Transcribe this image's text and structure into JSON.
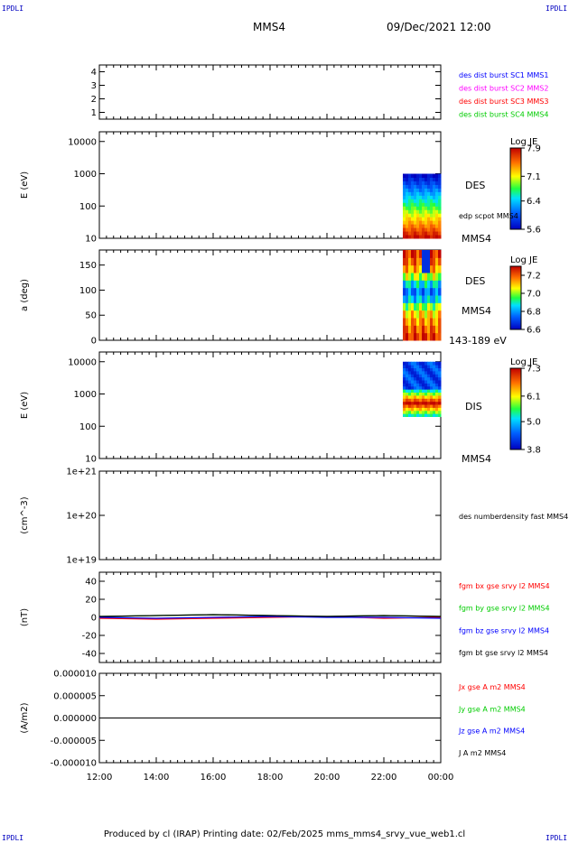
{
  "header": {
    "corner_label": "IPDLI",
    "spacecraft": "MMS4",
    "datetime": "09/Dec/2021 12:00"
  },
  "footer": {
    "text": "Produced by cl (IRAP)   Printing date: 02/Feb/2025   mms_mms4_srvy_vue_web1.cl"
  },
  "colors": {
    "blue": "#0000ff",
    "magenta": "#ff00ff",
    "red": "#ff0000",
    "green": "#00cc00",
    "black": "#000000"
  },
  "chart_data": [
    {
      "type": "line",
      "panel": "burst",
      "ylabel": "",
      "yticks": [
        "4",
        "3",
        "2",
        "1"
      ],
      "ylim": [
        0.5,
        4.5
      ],
      "legend": [
        {
          "text": "des dist burst SC1 MMS1",
          "color": "#0000ff"
        },
        {
          "text": "des dist burst SC2 MMS2",
          "color": "#ff00ff"
        },
        {
          "text": "des dist burst SC3 MMS3",
          "color": "#ff0000"
        },
        {
          "text": "des dist burst SC4 MMS4",
          "color": "#00cc00"
        }
      ],
      "series": []
    },
    {
      "type": "heatmap",
      "panel": "des-energy",
      "ylabel": "E (eV)",
      "yscale": "log",
      "yticks": [
        "10000",
        "1000",
        "100",
        "10"
      ],
      "ylim": [
        10,
        20000
      ],
      "species": "DES",
      "extra_label": "edp scpot MMS4",
      "bottom_label": "MMS4",
      "colorbar": {
        "title": "Log JE",
        "ticks": [
          "7.9",
          "7.1",
          "6.4",
          "5.6"
        ],
        "range": [
          5.6,
          7.9
        ]
      },
      "data_time_range": [
        "22:40",
        "24:00"
      ],
      "energy_range": [
        10,
        1000
      ]
    },
    {
      "type": "heatmap",
      "panel": "des-pitch",
      "ylabel": "a (deg)",
      "yticks": [
        "150",
        "100",
        "50",
        "0"
      ],
      "ylim": [
        0,
        180
      ],
      "species": "DES",
      "spacecraft": "MMS4",
      "energy_band": "143-189 eV",
      "colorbar": {
        "title": "Log JE",
        "ticks": [
          "7.2",
          "7.0",
          "6.8",
          "6.6"
        ],
        "range": [
          6.6,
          7.3
        ]
      },
      "data_time_range": [
        "22:40",
        "24:00"
      ]
    },
    {
      "type": "heatmap",
      "panel": "dis-energy",
      "ylabel": "E (eV)",
      "yscale": "log",
      "yticks": [
        "10000",
        "1000",
        "100",
        "10"
      ],
      "ylim": [
        10,
        20000
      ],
      "species": "DIS",
      "bottom_label": "MMS4",
      "colorbar": {
        "title": "Log JE",
        "ticks": [
          "7.3",
          "6.1",
          "5.0",
          "3.8"
        ],
        "range": [
          3.8,
          7.3
        ]
      },
      "data_time_range": [
        "22:40",
        "24:00"
      ],
      "energy_range": [
        200,
        10000
      ]
    },
    {
      "type": "line",
      "panel": "density",
      "ylabel": "(cm^-3)",
      "yscale": "log",
      "yticks": [
        "1e+21",
        "1e+20",
        "1e+19"
      ],
      "ylim": [
        1e+19,
        1e+21
      ],
      "legend": [
        {
          "text": "des numberdensity fast MMS4",
          "color": "#000000"
        }
      ],
      "series": []
    },
    {
      "type": "line",
      "panel": "magnetic-field",
      "ylabel": "(nT)",
      "yticks": [
        "40",
        "20",
        "0",
        "-20",
        "-40"
      ],
      "ylim": [
        -50,
        50
      ],
      "x": [
        "12:00",
        "14:00",
        "16:00",
        "18:00",
        "20:00",
        "22:00",
        "24:00"
      ],
      "legend": [
        {
          "text": "fgm bx gse srvy l2 MMS4",
          "color": "#ff0000"
        },
        {
          "text": "fgm by gse srvy l2 MMS4",
          "color": "#00cc00"
        },
        {
          "text": "fgm bz gse srvy l2 MMS4",
          "color": "#0000ff"
        },
        {
          "text": "fgm bt gse srvy l2 MMS4",
          "color": "#000000"
        }
      ],
      "series": [
        {
          "name": "fgm bx gse srvy l2 MMS4",
          "color": "#ff0000",
          "values": [
            -1,
            -2,
            -1,
            0,
            1,
            -1,
            0
          ]
        },
        {
          "name": "fgm by gse srvy l2 MMS4",
          "color": "#00cc00",
          "values": [
            1,
            2,
            3,
            2,
            1,
            2,
            1
          ]
        },
        {
          "name": "fgm bz gse srvy l2 MMS4",
          "color": "#0000ff",
          "values": [
            0,
            -1,
            0,
            1,
            0,
            0,
            -1
          ]
        },
        {
          "name": "fgm bt gse srvy l2 MMS4",
          "color": "#000000",
          "values": [
            1,
            2,
            3,
            2,
            1,
            2,
            1
          ]
        }
      ]
    },
    {
      "type": "line",
      "panel": "current-density",
      "ylabel": "(A/m2)",
      "yticks": [
        "0.000010",
        "0.000005",
        "0.000000",
        "-0.000005",
        "-0.000010"
      ],
      "ylim": [
        -1e-05,
        1e-05
      ],
      "xticks": [
        "12:00",
        "14:00",
        "16:00",
        "18:00",
        "20:00",
        "22:00",
        "00:00"
      ],
      "legend": [
        {
          "text": "Jx gse A m2 MMS4",
          "color": "#ff0000"
        },
        {
          "text": "Jy gse A m2 MMS4",
          "color": "#00cc00"
        },
        {
          "text": "Jz gse A m2 MMS4",
          "color": "#0000ff"
        },
        {
          "text": "J A m2 MMS4",
          "color": "#000000"
        }
      ],
      "series": [
        {
          "name": "J A m2 MMS4",
          "color": "#000000",
          "values": [
            0,
            0,
            0,
            0,
            0,
            0,
            0
          ]
        }
      ]
    }
  ]
}
